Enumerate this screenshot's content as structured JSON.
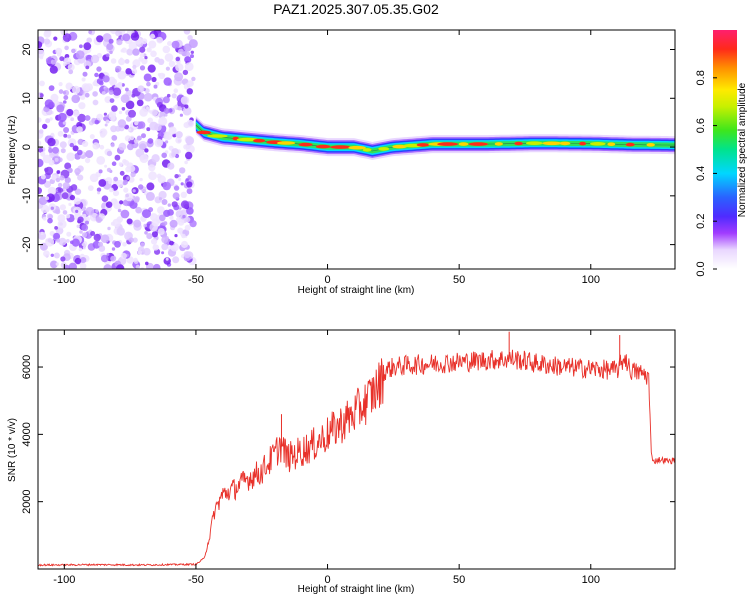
{
  "title": "PAZ1.2025.307.05.35.G02",
  "chart_data": [
    {
      "type": "heatmap",
      "name": "spectrogram",
      "xlabel": "Height of straight line (km)",
      "ylabel": "Frequency (Hz)",
      "xlim": [
        -110,
        132
      ],
      "ylim": [
        -25,
        24
      ],
      "xticks": [
        -100,
        -50,
        0,
        50,
        100
      ],
      "yticks": [
        -20,
        -10,
        0,
        10,
        20
      ],
      "noise_region": [
        -110,
        -50
      ],
      "line_profile": {
        "x": [
          -50,
          -47,
          -40,
          -30,
          -20,
          -10,
          0,
          10,
          17,
          25,
          40,
          60,
          80,
          100,
          115,
          132
        ],
        "freq": [
          4.5,
          3,
          2,
          1.5,
          1,
          0.6,
          0,
          0,
          -0.8,
          0,
          0.6,
          0.6,
          0.8,
          0.7,
          0.5,
          0.4
        ]
      },
      "colorbar": {
        "label": "Normalized spectral amplitude",
        "ticks": [
          0.0,
          0.2,
          0.4,
          0.6,
          0.8
        ],
        "range": [
          0,
          1
        ]
      }
    },
    {
      "type": "line",
      "name": "snr",
      "xlabel": "Height of straight line (km)",
      "ylabel": "SNR (10 * v/v)",
      "xlim": [
        -110,
        132
      ],
      "ylim": [
        0,
        7100
      ],
      "xticks": [
        -100,
        -50,
        0,
        50,
        100
      ],
      "yticks": [
        2000,
        4000,
        6000
      ],
      "color": "#e8312a",
      "series": [
        {
          "name": "SNR",
          "x": [
            -110,
            -100,
            -90,
            -80,
            -70,
            -60,
            -50,
            -47,
            -45,
            -43,
            -40,
            -35,
            -30,
            -25,
            -20,
            -18,
            -15,
            -10,
            -5,
            0,
            5,
            10,
            15,
            20,
            22,
            25,
            30,
            40,
            50,
            60,
            70,
            80,
            90,
            100,
            110,
            113,
            115,
            120,
            122,
            123,
            124,
            126,
            130,
            132
          ],
          "values": [
            120,
            120,
            130,
            125,
            120,
            130,
            140,
            300,
            900,
            1700,
            2200,
            2400,
            2700,
            2900,
            3400,
            3700,
            3300,
            3500,
            3700,
            4000,
            4300,
            4600,
            5000,
            5500,
            5900,
            6000,
            6050,
            6100,
            6150,
            6200,
            6250,
            6100,
            6000,
            5950,
            5900,
            6300,
            5900,
            5800,
            5700,
            3400,
            3200,
            3250,
            3200,
            3250
          ]
        }
      ],
      "annotations": [
        {
          "x": 69,
          "y": 7050,
          "note": "spike"
        },
        {
          "x": -17.5,
          "y": 4600,
          "note": "spike"
        },
        {
          "x": 111,
          "y": 6950,
          "note": "spike"
        }
      ]
    }
  ]
}
